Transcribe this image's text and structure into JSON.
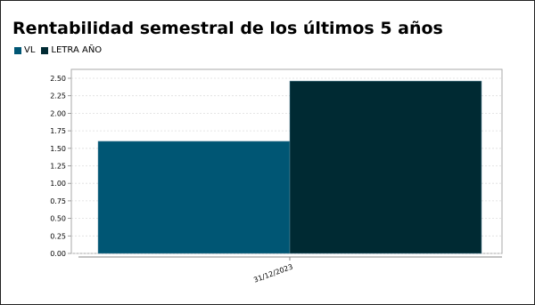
{
  "chart_data": {
    "type": "bar",
    "title": "Rentabilidad semestral de los últimos 5 años",
    "xlabel": "",
    "ylabel": "",
    "categories": [
      "31/12/2023"
    ],
    "series": [
      {
        "name": "VL",
        "values": [
          1.6
        ],
        "color": "#005674"
      },
      {
        "name": "LETRA AÑO",
        "values": [
          2.46
        ],
        "color": "#002a33"
      }
    ],
    "ylim": [
      0,
      2.5
    ],
    "yticks": [
      "0.00",
      "0.25",
      "0.50",
      "0.75",
      "1.00",
      "1.25",
      "1.50",
      "1.75",
      "2.00",
      "2.25",
      "2.50"
    ],
    "grid": true,
    "legend_position": "top-left"
  }
}
